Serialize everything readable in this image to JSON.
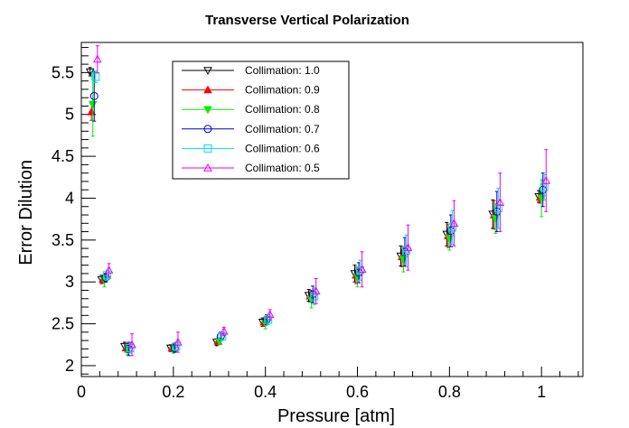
{
  "chart_data": {
    "type": "scatter",
    "title": "Transverse Vertical Polarization",
    "xlabel": "Pressure [atm]",
    "ylabel": "Error Dilution",
    "xlim": [
      0,
      1.09
    ],
    "ylim": [
      1.87,
      5.86
    ],
    "xticks": [
      0,
      0.2,
      0.4,
      0.6,
      0.8,
      1
    ],
    "xtick_labels": [
      "0",
      "0.2",
      "0.4",
      "0.6",
      "0.8",
      "1"
    ],
    "yticks": [
      2,
      2.5,
      3,
      3.5,
      4,
      4.5,
      5,
      5.5
    ],
    "ytick_labels": [
      "2",
      "2.5",
      "3",
      "3.5",
      "4",
      "4.5",
      "5",
      "5.5"
    ],
    "x": [
      0.025,
      0.05,
      0.1,
      0.2,
      0.3,
      0.4,
      0.5,
      0.6,
      0.7,
      0.8,
      0.9,
      1.0
    ],
    "legend_position": "top-left",
    "series": [
      {
        "name": "Collimation: 1.0",
        "color": "#000000",
        "marker": "triangle-down-open",
        "x_offset": -0.006,
        "values": [
          5.51,
          3.03,
          2.23,
          2.21,
          2.28,
          2.52,
          2.84,
          3.1,
          3.31,
          3.57,
          3.81,
          4.02
        ],
        "errors": [
          0.05,
          0.05,
          0.05,
          0.04,
          0.04,
          0.05,
          0.07,
          0.1,
          0.12,
          0.14,
          0.17,
          0.07
        ]
      },
      {
        "name": "Collimation: 0.9",
        "color": "#ff0000",
        "marker": "triangle-up-filled",
        "x_offset": -0.003,
        "values": [
          5.03,
          3.03,
          2.21,
          2.21,
          2.29,
          2.52,
          2.83,
          3.08,
          3.3,
          3.55,
          3.8,
          4.01
        ],
        "errors": [
          0.1,
          0.05,
          0.05,
          0.04,
          0.04,
          0.05,
          0.07,
          0.1,
          0.12,
          0.14,
          0.17,
          0.07
        ]
      },
      {
        "name": "Collimation: 0.8",
        "color": "#00ee00",
        "marker": "triangle-down-filled",
        "x_offset": 0.0,
        "values": [
          5.12,
          3.02,
          2.19,
          2.19,
          2.29,
          2.51,
          2.79,
          3.06,
          3.27,
          3.52,
          3.76,
          4.0
        ],
        "errors": [
          0.38,
          0.08,
          0.06,
          0.04,
          0.04,
          0.07,
          0.1,
          0.12,
          0.15,
          0.14,
          0.18,
          0.22
        ]
      },
      {
        "name": "Collimation: 0.7",
        "color": "#0000cc",
        "marker": "circle-open",
        "x_offset": 0.003,
        "values": [
          5.22,
          3.05,
          2.2,
          2.21,
          2.35,
          2.55,
          2.85,
          3.11,
          3.36,
          3.61,
          3.84,
          4.1
        ],
        "errors": [
          0.3,
          0.05,
          0.08,
          0.05,
          0.05,
          0.06,
          0.1,
          0.12,
          0.17,
          0.19,
          0.24,
          0.2
        ]
      },
      {
        "name": "Collimation: 0.6",
        "color": "#00dddd",
        "marker": "square-open",
        "x_offset": 0.006,
        "values": [
          5.45,
          3.08,
          2.21,
          2.23,
          2.35,
          2.55,
          2.83,
          3.14,
          3.37,
          3.65,
          3.88,
          4.13
        ],
        "errors": [
          0.07,
          0.06,
          0.06,
          0.05,
          0.05,
          0.06,
          0.1,
          0.12,
          0.19,
          0.2,
          0.24,
          0.15
        ]
      },
      {
        "name": "Collimation: 0.5",
        "color": "#ee00ee",
        "marker": "triangle-up-open",
        "x_offset": 0.01,
        "values": [
          5.66,
          3.14,
          2.25,
          2.28,
          2.41,
          2.61,
          2.89,
          3.15,
          3.41,
          3.7,
          3.95,
          4.21
        ],
        "errors": [
          0.16,
          0.08,
          0.13,
          0.12,
          0.05,
          0.06,
          0.15,
          0.21,
          0.27,
          0.27,
          0.35,
          0.37
        ]
      }
    ]
  }
}
